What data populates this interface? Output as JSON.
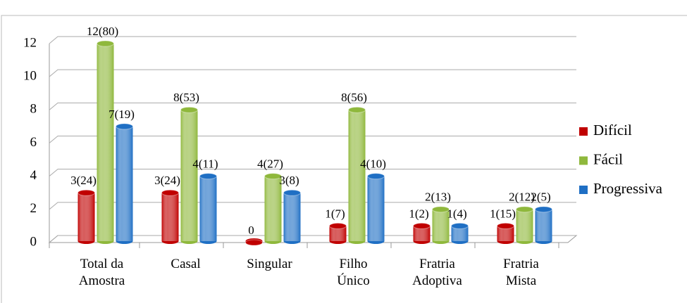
{
  "chart_data": {
    "type": "bar3d",
    "categories": [
      "Total da Amostra",
      "Casal",
      "Singular",
      "Filho Único",
      "Fratria Adoptiva",
      "Fratria Mista"
    ],
    "series": [
      {
        "name": "Difícil",
        "color": "#c00000",
        "values": [
          3,
          3,
          0,
          1,
          1,
          1
        ],
        "value_labels": [
          "3(24)",
          "3(24)",
          "0",
          "1(7)",
          "1(2)",
          "1(15)"
        ]
      },
      {
        "name": "Fácil",
        "color": "#8fb83c",
        "values": [
          12,
          8,
          4,
          8,
          2,
          2
        ],
        "value_labels": [
          "12(80)",
          "8(53)",
          "4(27)",
          "8(56)",
          "2(13)",
          "2(12)"
        ]
      },
      {
        "name": "Progressiva",
        "color": "#1f6fc4",
        "values": [
          7,
          4,
          3,
          4,
          1,
          2
        ],
        "value_labels": [
          "7(19)",
          "4(11)",
          "3(8)",
          "4(10)",
          "1(4)",
          "2(5)"
        ]
      }
    ],
    "ylim": [
      0,
      12
    ],
    "yticks": [
      0,
      2,
      4,
      6,
      8,
      10,
      12
    ],
    "grid": true,
    "legend": "right"
  }
}
